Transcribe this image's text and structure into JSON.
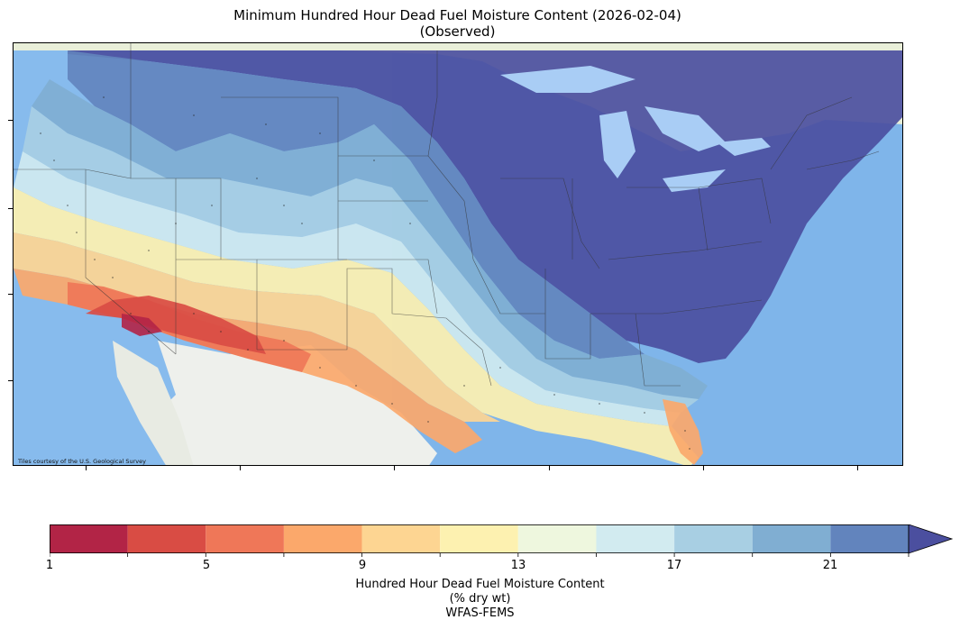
{
  "title": {
    "line1": "Minimum Hundred Hour Dead Fuel Moisture Content (2026-02-04)",
    "line2": "(Observed)"
  },
  "map": {
    "attribution": "Tiles courtesy of the U.S. Geological Survey",
    "basemap_colors": {
      "ocean": "#7fb5ea",
      "land": "#f1efe9",
      "lake": "#a9cdf5"
    }
  },
  "colorbar": {
    "tick_labels": [
      "1",
      "5",
      "9",
      "13",
      "17",
      "21"
    ],
    "tick_values": [
      1,
      5,
      9,
      13,
      17,
      21
    ],
    "range": [
      1,
      23
    ],
    "extend": "max",
    "bins": [
      {
        "from": 1,
        "to": 3,
        "color": "#b22446"
      },
      {
        "from": 3,
        "to": 5,
        "color": "#d94c44"
      },
      {
        "from": 5,
        "to": 7,
        "color": "#ef7758"
      },
      {
        "from": 7,
        "to": 9,
        "color": "#fba86b"
      },
      {
        "from": 9,
        "to": 11,
        "color": "#fdd592"
      },
      {
        "from": 11,
        "to": 13,
        "color": "#fdf1b0"
      },
      {
        "from": 13,
        "to": 15,
        "color": "#eef7de"
      },
      {
        "from": 15,
        "to": 17,
        "color": "#d2ebf0"
      },
      {
        "from": 17,
        "to": 19,
        "color": "#a8cfe3"
      },
      {
        "from": 19,
        "to": 21,
        "color": "#80aed2"
      },
      {
        "from": 21,
        "to": 23,
        "color": "#6284bd"
      }
    ],
    "over_color": "#4b4f9f",
    "label_line1": "Hundred Hour Dead Fuel Moisture Content",
    "label_line2": "(% dry wt)",
    "label_line3": "WFAS-FEMS"
  }
}
